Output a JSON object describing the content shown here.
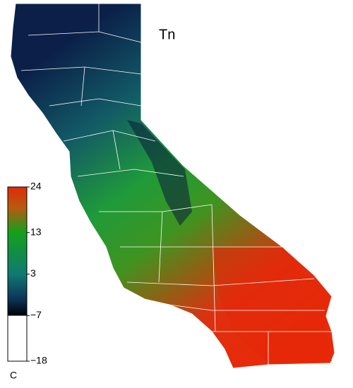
{
  "map": {
    "title": "Tn",
    "legend": {
      "unit": "C",
      "range": [
        -18,
        24
      ],
      "ticks": [
        24,
        13,
        3,
        {
          "value": -7,
          "label": "−7"
        },
        {
          "value": -18,
          "label": "−18"
        }
      ],
      "stops": [
        {
          "value": 24,
          "color": "#e02a08"
        },
        {
          "value": 19,
          "color": "#b85a12"
        },
        {
          "value": 13,
          "color": "#14a01a"
        },
        {
          "value": 3,
          "color": "#107a72"
        },
        {
          "value": -3,
          "color": "#0d3458"
        },
        {
          "value": -7,
          "color": "#000008"
        },
        {
          "value": -7,
          "color": "#ffffff"
        },
        {
          "value": -18,
          "color": "#ffffff"
        }
      ]
    }
  }
}
